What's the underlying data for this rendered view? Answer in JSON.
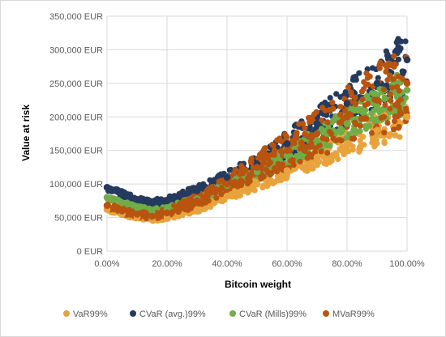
{
  "chart_data": {
    "type": "scatter",
    "title": "",
    "xlabel": "Bitcoin weight",
    "ylabel": "Value at risk",
    "xlim": [
      0,
      100
    ],
    "ylim": [
      0,
      350000
    ],
    "x_ticks": [
      "0.00%",
      "20.00%",
      "40.00%",
      "60.00%",
      "80.00%",
      "100.00%"
    ],
    "y_ticks": [
      "0 EUR",
      "50,000 EUR",
      "100,000 EUR",
      "150,000 EUR",
      "200,000 EUR",
      "250,000 EUR",
      "300,000 EUR",
      "350,000 EUR"
    ],
    "grid": true,
    "legend_position": "bottom",
    "series": [
      {
        "name": "VaR99%",
        "color": "#e8a33d",
        "x": [
          0,
          5,
          10,
          15,
          20,
          30,
          40,
          50,
          60,
          70,
          80,
          90,
          100
        ],
        "y": [
          62000,
          55000,
          50000,
          47000,
          50000,
          62000,
          82000,
          100000,
          120000,
          140000,
          160000,
          180000,
          200000
        ]
      },
      {
        "name": "CVaR (avg.)99%",
        "color": "#243a5e",
        "x": [
          0,
          5,
          10,
          15,
          20,
          30,
          40,
          50,
          60,
          70,
          80,
          90,
          100
        ],
        "y": [
          95000,
          85000,
          77000,
          72000,
          75000,
          90000,
          110000,
          130000,
          160000,
          190000,
          220000,
          250000,
          285000
        ]
      },
      {
        "name": "CVaR (Mills)99%",
        "color": "#70ad47",
        "x": [
          0,
          5,
          10,
          15,
          20,
          30,
          40,
          50,
          60,
          70,
          80,
          90,
          100
        ],
        "y": [
          80000,
          72000,
          65000,
          60000,
          63000,
          78000,
          98000,
          118000,
          142000,
          165000,
          190000,
          215000,
          240000
        ]
      },
      {
        "name": "MVaR99%",
        "color": "#b85410",
        "x": [
          0,
          5,
          10,
          15,
          20,
          30,
          40,
          50,
          60,
          70,
          80,
          90,
          100
        ],
        "y": [
          68000,
          60000,
          55000,
          52000,
          57000,
          75000,
          100000,
          125000,
          150000,
          175000,
          200000,
          225000,
          250000
        ]
      }
    ]
  }
}
